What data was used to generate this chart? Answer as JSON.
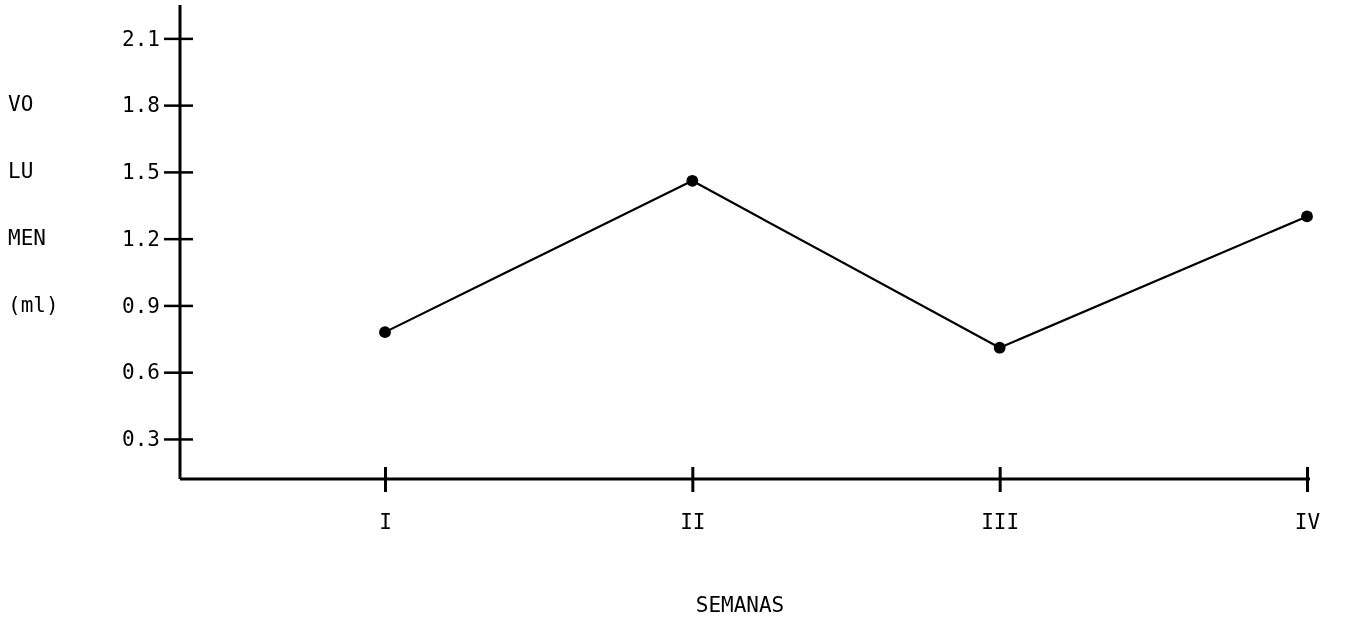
{
  "chart_data": {
    "type": "line",
    "xlabel": "SEMANAS",
    "ylabel": "VO LU MEN (ml)",
    "categories": [
      "I",
      "II",
      "III",
      "IV"
    ],
    "series": [
      {
        "color": "#000000",
        "values": [
          0.78,
          1.46,
          0.71,
          1.3
        ]
      }
    ],
    "ylim": [
      0.12,
      2.25
    ],
    "yticks": [
      0.3,
      0.6,
      0.9,
      1.2,
      1.5,
      1.8,
      2.1
    ],
    "marker": "circle",
    "line_style": "solid"
  }
}
